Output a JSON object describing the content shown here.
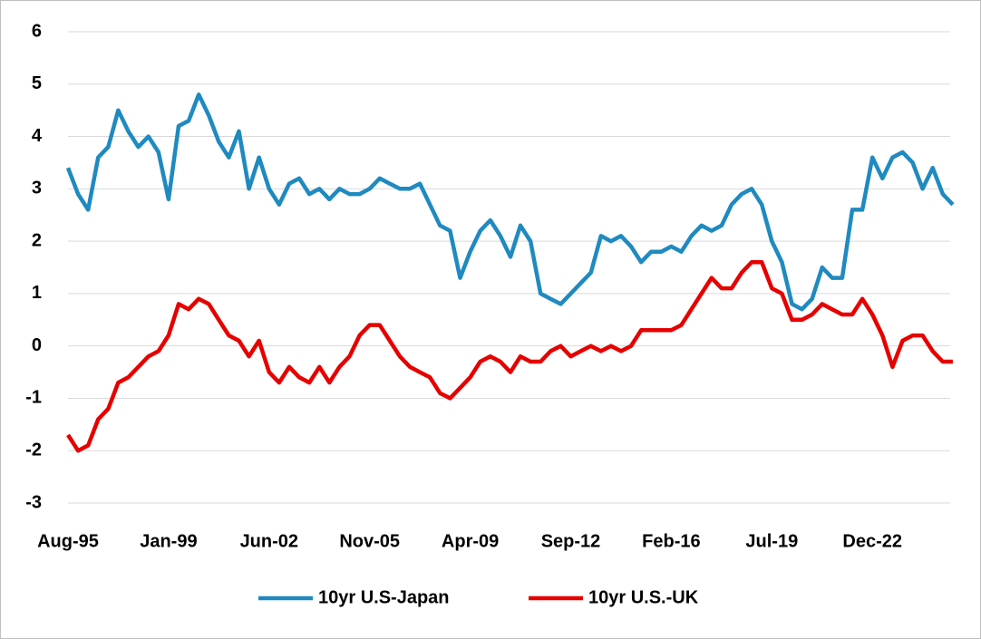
{
  "chart_data": {
    "type": "line",
    "categories": [
      "Aug-95",
      null,
      null,
      null,
      null,
      null,
      null,
      null,
      null,
      null,
      "Jan-99",
      null,
      null,
      null,
      null,
      null,
      null,
      null,
      null,
      null,
      "Jun-02",
      null,
      null,
      null,
      null,
      null,
      null,
      null,
      null,
      null,
      "Nov-05",
      null,
      null,
      null,
      null,
      null,
      null,
      null,
      null,
      null,
      "Apr-09",
      null,
      null,
      null,
      null,
      null,
      null,
      null,
      null,
      null,
      "Sep-12",
      null,
      null,
      null,
      null,
      null,
      null,
      null,
      null,
      null,
      "Feb-16",
      null,
      null,
      null,
      null,
      null,
      null,
      null,
      null,
      null,
      "Jul-19",
      null,
      null,
      null,
      null,
      null,
      null,
      null,
      null,
      null,
      "Dec-22",
      null,
      null,
      null,
      null,
      null,
      null,
      null,
      null
    ],
    "series": [
      {
        "name": "10yr U.S-Japan",
        "color": "#1f8ac0",
        "values": [
          3.4,
          2.9,
          2.6,
          3.6,
          3.8,
          4.5,
          4.1,
          3.8,
          4.0,
          3.7,
          2.8,
          4.2,
          4.3,
          4.8,
          4.4,
          3.9,
          3.6,
          4.1,
          3.0,
          3.6,
          3.0,
          2.7,
          3.1,
          3.2,
          2.9,
          3.0,
          2.8,
          3.0,
          2.9,
          2.9,
          3.0,
          3.2,
          3.1,
          3.0,
          3.0,
          3.1,
          2.7,
          2.3,
          2.2,
          1.3,
          1.8,
          2.2,
          2.4,
          2.1,
          1.7,
          2.3,
          2.0,
          1.0,
          0.9,
          0.8,
          1.0,
          1.2,
          1.4,
          2.1,
          2.0,
          2.1,
          1.9,
          1.6,
          1.8,
          1.8,
          1.9,
          1.8,
          2.1,
          2.3,
          2.2,
          2.3,
          2.7,
          2.9,
          3.0,
          2.7,
          2.0,
          1.6,
          0.8,
          0.7,
          0.9,
          1.5,
          1.3,
          1.3,
          2.6,
          2.6,
          3.6,
          3.2,
          3.6,
          3.7,
          3.5,
          3.0,
          3.4,
          2.9,
          2.7
        ]
      },
      {
        "name": "10yr U.S.-UK",
        "color": "#e60000",
        "values": [
          -1.7,
          -2.0,
          -1.9,
          -1.4,
          -1.2,
          -0.7,
          -0.6,
          -0.4,
          -0.2,
          -0.1,
          0.2,
          0.8,
          0.7,
          0.9,
          0.8,
          0.5,
          0.2,
          0.1,
          -0.2,
          0.1,
          -0.5,
          -0.7,
          -0.4,
          -0.6,
          -0.7,
          -0.4,
          -0.7,
          -0.4,
          -0.2,
          0.2,
          0.4,
          0.4,
          0.1,
          -0.2,
          -0.4,
          -0.5,
          -0.6,
          -0.9,
          -1.0,
          -0.8,
          -0.6,
          -0.3,
          -0.2,
          -0.3,
          -0.5,
          -0.2,
          -0.3,
          -0.3,
          -0.1,
          0.0,
          -0.2,
          -0.1,
          0.0,
          -0.1,
          0.0,
          -0.1,
          0.0,
          0.3,
          0.3,
          0.3,
          0.3,
          0.4,
          0.7,
          1.0,
          1.3,
          1.1,
          1.1,
          1.4,
          1.6,
          1.6,
          1.1,
          1.0,
          0.5,
          0.5,
          0.6,
          0.8,
          0.7,
          0.6,
          0.6,
          0.9,
          0.6,
          0.2,
          -0.4,
          0.1,
          0.2,
          0.2,
          -0.1,
          -0.3,
          -0.3
        ]
      }
    ],
    "ylim": [
      -3,
      6
    ],
    "yticks": [
      -3,
      -2,
      -1,
      0,
      1,
      2,
      3,
      4,
      5,
      6
    ],
    "grid": true,
    "legend": "bottom"
  }
}
